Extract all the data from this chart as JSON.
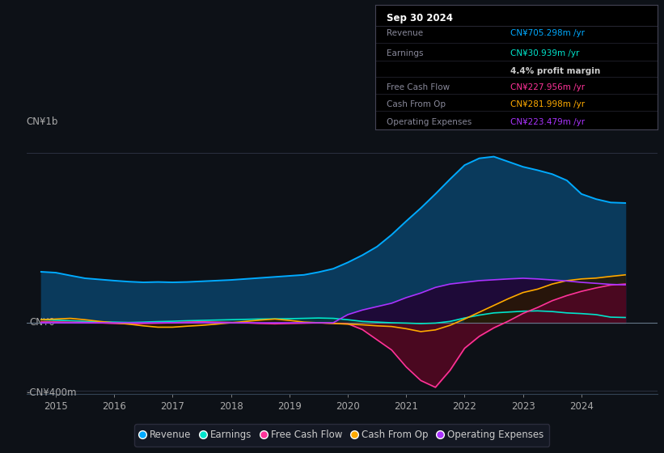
{
  "bg_color": "#0d1117",
  "plot_bg_color": "#0d1117",
  "y_label_top": "CN¥1b",
  "y_label_bottom": "-CN¥400m",
  "y_zero_label": "CN¥0",
  "x_ticks": [
    2015,
    2016,
    2017,
    2018,
    2019,
    2020,
    2021,
    2022,
    2023,
    2024
  ],
  "ylim": [
    -420,
    1100
  ],
  "xlim": [
    2014.5,
    2025.3
  ],
  "revenue_color": "#00aaff",
  "revenue_fill": "#0a3a5c",
  "earnings_color": "#00e5cc",
  "earnings_fill": "#0a3535",
  "fcf_color": "#ff3399",
  "fcf_fill": "#4a0820",
  "cashfromop_color": "#ffaa00",
  "cashfromop_fill": "#2a1800",
  "opex_color": "#aa33ff",
  "opex_fill": "#1e0a38",
  "legend_bg": "#161b27",
  "tooltip_title": "Sep 30 2024",
  "revenue_label": "Revenue",
  "earnings_label": "Earnings",
  "fcf_label": "Free Cash Flow",
  "cashfromop_label": "Cash From Op",
  "opex_label": "Operating Expenses",
  "revenue_val": "CN¥705.298m",
  "earnings_val": "CN¥30.939m",
  "profit_margin": "4.4% profit margin",
  "fcf_val": "CN¥227.956m",
  "cashfromop_val": "CN¥281.998m",
  "opex_val": "CN¥223.479m",
  "years": [
    2014.75,
    2015.0,
    2015.25,
    2015.5,
    2015.75,
    2016.0,
    2016.25,
    2016.5,
    2016.75,
    2017.0,
    2017.25,
    2017.5,
    2017.75,
    2018.0,
    2018.25,
    2018.5,
    2018.75,
    2019.0,
    2019.25,
    2019.5,
    2019.75,
    2020.0,
    2020.25,
    2020.5,
    2020.75,
    2021.0,
    2021.25,
    2021.5,
    2021.75,
    2022.0,
    2022.25,
    2022.5,
    2022.75,
    2023.0,
    2023.25,
    2023.5,
    2023.75,
    2024.0,
    2024.25,
    2024.5,
    2024.75
  ],
  "revenue": [
    300,
    295,
    278,
    262,
    255,
    248,
    242,
    238,
    240,
    238,
    240,
    244,
    248,
    252,
    258,
    264,
    270,
    276,
    282,
    298,
    318,
    355,
    398,
    448,
    518,
    598,
    675,
    758,
    845,
    928,
    968,
    978,
    948,
    918,
    898,
    875,
    838,
    758,
    728,
    708,
    705
  ],
  "earnings": [
    18,
    15,
    12,
    8,
    6,
    4,
    2,
    4,
    7,
    9,
    12,
    14,
    16,
    18,
    20,
    22,
    23,
    24,
    26,
    28,
    26,
    18,
    8,
    4,
    0,
    -2,
    -5,
    -2,
    8,
    28,
    45,
    58,
    63,
    68,
    70,
    66,
    58,
    54,
    48,
    33,
    31
  ],
  "fcf": [
    5,
    5,
    3,
    2,
    0,
    -4,
    -6,
    -4,
    -2,
    0,
    4,
    6,
    4,
    2,
    0,
    -4,
    -6,
    -4,
    -2,
    0,
    -3,
    -6,
    -40,
    -100,
    -160,
    -260,
    -340,
    -380,
    -280,
    -150,
    -80,
    -30,
    10,
    55,
    90,
    130,
    160,
    185,
    205,
    222,
    228
  ],
  "cashfromop": [
    18,
    22,
    26,
    18,
    8,
    0,
    -8,
    -18,
    -26,
    -26,
    -20,
    -15,
    -8,
    0,
    8,
    16,
    22,
    14,
    4,
    0,
    -4,
    -8,
    -12,
    -18,
    -22,
    -35,
    -52,
    -42,
    -15,
    22,
    62,
    102,
    142,
    178,
    198,
    228,
    248,
    258,
    263,
    273,
    282
  ],
  "opex": [
    0,
    0,
    0,
    0,
    0,
    0,
    0,
    0,
    0,
    0,
    0,
    0,
    0,
    0,
    0,
    0,
    0,
    0,
    0,
    0,
    0,
    48,
    75,
    95,
    115,
    148,
    175,
    208,
    228,
    238,
    248,
    253,
    258,
    262,
    258,
    252,
    246,
    238,
    232,
    226,
    223
  ]
}
